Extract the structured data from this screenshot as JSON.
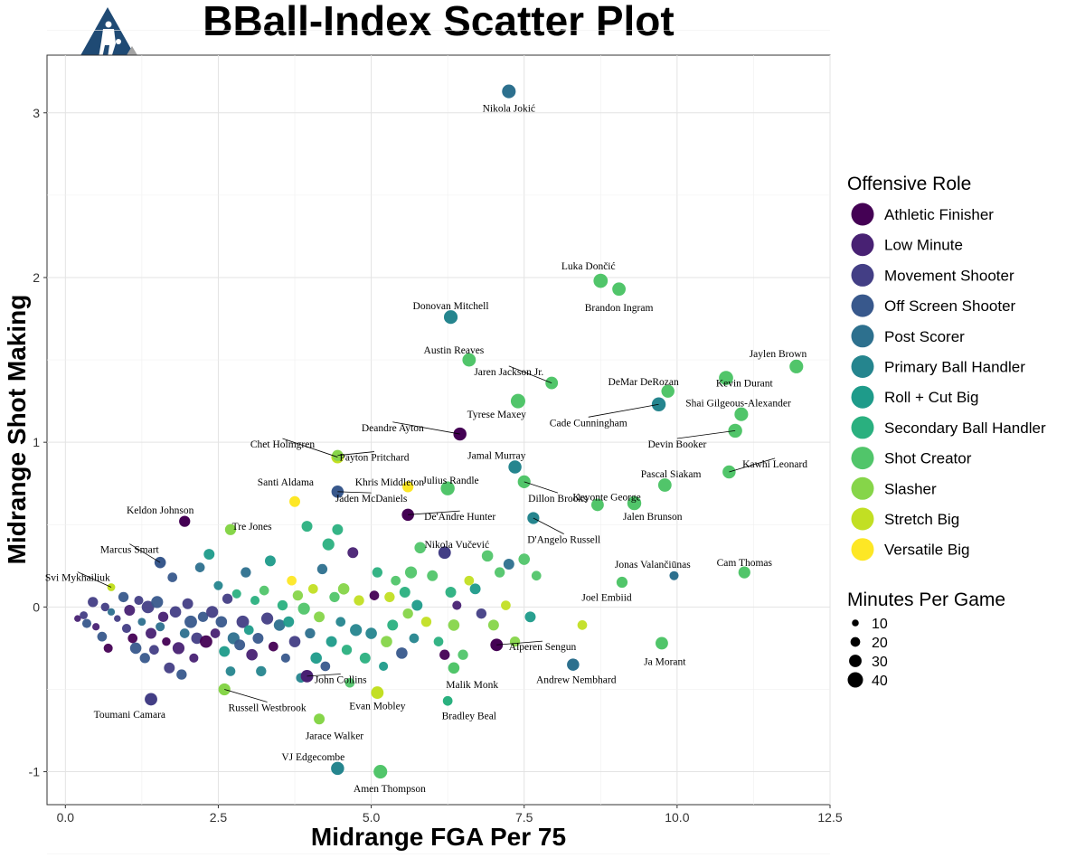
{
  "chart_data": {
    "type": "scatter",
    "title": "BBall-Index Scatter Plot",
    "xlabel": "Midrange FGA Per 75",
    "ylabel": "Midrange Shot Making",
    "xlim": [
      -0.3,
      12.5
    ],
    "ylim": [
      -1.2,
      3.35
    ],
    "x_ticks": [
      "0.0",
      "2.5",
      "5.0",
      "7.5",
      "10.0",
      "12.5"
    ],
    "y_ticks": [
      "-1",
      "0",
      "1",
      "2",
      "3"
    ],
    "grid": true,
    "legend_color_title": "Offensive Role",
    "legend_size_title": "Minutes Per Game",
    "legend_position": "right",
    "roles": [
      {
        "name": "Athletic Finisher",
        "color": "#440154"
      },
      {
        "name": "Low Minute",
        "color": "#482173"
      },
      {
        "name": "Movement Shooter",
        "color": "#433e85"
      },
      {
        "name": "Off Screen Shooter",
        "color": "#38588c"
      },
      {
        "name": "Post Scorer",
        "color": "#2d708e"
      },
      {
        "name": "Primary Ball Handler",
        "color": "#25858e"
      },
      {
        "name": "Roll + Cut Big",
        "color": "#1e9b8a"
      },
      {
        "name": "Secondary Ball Handler",
        "color": "#2ab07f"
      },
      {
        "name": "Shot Creator",
        "color": "#51c56a"
      },
      {
        "name": "Slasher",
        "color": "#86d549"
      },
      {
        "name": "Stretch Big",
        "color": "#c2df23"
      },
      {
        "name": "Versatile Big",
        "color": "#fde725"
      }
    ],
    "size_legend": [
      "10",
      "20",
      "30",
      "40"
    ],
    "labeled_points": [
      {
        "name": "Nikola Jokić",
        "x": 7.25,
        "y": 3.13,
        "mpg": 34,
        "role": 4,
        "lx": 7.25,
        "ly": 3.03
      },
      {
        "name": "Luka Dončić",
        "x": 8.75,
        "y": 1.98,
        "mpg": 36,
        "role": 8,
        "lx": 8.55,
        "ly": 2.07
      },
      {
        "name": "Brandon Ingram",
        "x": 9.05,
        "y": 1.93,
        "mpg": 33,
        "role": 8,
        "lx": 9.05,
        "ly": 1.82
      },
      {
        "name": "Donovan Mitchell",
        "x": 6.3,
        "y": 1.76,
        "mpg": 34,
        "role": 5,
        "lx": 6.3,
        "ly": 1.83
      },
      {
        "name": "Austin Reaves",
        "x": 6.6,
        "y": 1.5,
        "mpg": 33,
        "role": 8,
        "lx": 6.35,
        "ly": 1.56
      },
      {
        "name": "Jaylen Brown",
        "x": 11.95,
        "y": 1.46,
        "mpg": 34,
        "role": 8,
        "lx": 11.65,
        "ly": 1.54
      },
      {
        "name": "Kevin Durant",
        "x": 10.8,
        "y": 1.39,
        "mpg": 36,
        "role": 8,
        "lx": 11.1,
        "ly": 1.36
      },
      {
        "name": "Jaren Jackson Jr.",
        "x": 7.95,
        "y": 1.36,
        "mpg": 30,
        "role": 8,
        "lx": 7.25,
        "ly": 1.43
      },
      {
        "name": "DeMar DeRozan",
        "x": 9.85,
        "y": 1.31,
        "mpg": 32,
        "role": 8,
        "lx": 9.45,
        "ly": 1.37
      },
      {
        "name": "Shai Gilgeous-Alexander",
        "x": 11.05,
        "y": 1.17,
        "mpg": 34,
        "role": 8,
        "lx": 11.0,
        "ly": 1.24
      },
      {
        "name": "Cade Cunningham",
        "x": 9.7,
        "y": 1.23,
        "mpg": 35,
        "role": 5,
        "lx": 8.55,
        "ly": 1.12
      },
      {
        "name": "Tyrese Maxey",
        "x": 7.4,
        "y": 1.25,
        "mpg": 37,
        "role": 8,
        "lx": 7.05,
        "ly": 1.17
      },
      {
        "name": "Devin Booker",
        "x": 10.95,
        "y": 1.07,
        "mpg": 35,
        "role": 8,
        "lx": 10.0,
        "ly": 0.99
      },
      {
        "name": "Deandre Ayton",
        "x": 6.45,
        "y": 1.05,
        "mpg": 32,
        "role": 0,
        "lx": 5.35,
        "ly": 1.09
      },
      {
        "name": "Chet Holmgren",
        "x": 4.45,
        "y": 0.91,
        "mpg": 30,
        "role": 10,
        "lx": 3.55,
        "ly": 0.99
      },
      {
        "name": "Payton Pritchard",
        "x": 4.45,
        "y": 0.92,
        "mpg": 25,
        "role": 9,
        "lx": 5.05,
        "ly": 0.91
      },
      {
        "name": "Kawhi Leonard",
        "x": 10.85,
        "y": 0.82,
        "mpg": 32,
        "role": 8,
        "lx": 11.6,
        "ly": 0.87
      },
      {
        "name": "Jamal Murray",
        "x": 7.35,
        "y": 0.85,
        "mpg": 32,
        "role": 5,
        "lx": 7.05,
        "ly": 0.92
      },
      {
        "name": "Pascal Siakam",
        "x": 9.8,
        "y": 0.74,
        "mpg": 33,
        "role": 8,
        "lx": 9.9,
        "ly": 0.81
      },
      {
        "name": "Santi Aldama",
        "x": 3.75,
        "y": 0.64,
        "mpg": 24,
        "role": 11,
        "lx": 3.6,
        "ly": 0.76
      },
      {
        "name": "Khris Middleton",
        "x": 5.6,
        "y": 0.73,
        "mpg": 25,
        "role": 11,
        "lx": 5.3,
        "ly": 0.76
      },
      {
        "name": "Julius Randle",
        "x": 6.25,
        "y": 0.72,
        "mpg": 35,
        "role": 8,
        "lx": 6.3,
        "ly": 0.77
      },
      {
        "name": "Jaden McDaniels",
        "x": 4.45,
        "y": 0.7,
        "mpg": 29,
        "role": 3,
        "lx": 5.0,
        "ly": 0.66
      },
      {
        "name": "Dillon Brooks",
        "x": 7.5,
        "y": 0.76,
        "mpg": 31,
        "role": 8,
        "lx": 8.05,
        "ly": 0.66
      },
      {
        "name": "Keyonte George",
        "x": 8.7,
        "y": 0.62,
        "mpg": 30,
        "role": 8,
        "lx": 8.85,
        "ly": 0.67
      },
      {
        "name": "Jalen Brunson",
        "x": 9.3,
        "y": 0.63,
        "mpg": 35,
        "role": 8,
        "lx": 9.6,
        "ly": 0.55
      },
      {
        "name": "Keldon Johnson",
        "x": 1.95,
        "y": 0.52,
        "mpg": 25,
        "role": 0,
        "lx": 1.55,
        "ly": 0.59
      },
      {
        "name": "De'Andre Hunter",
        "x": 5.6,
        "y": 0.56,
        "mpg": 29,
        "role": 0,
        "lx": 6.45,
        "ly": 0.55
      },
      {
        "name": "D'Angelo Russell",
        "x": 7.65,
        "y": 0.54,
        "mpg": 28,
        "role": 5,
        "lx": 8.15,
        "ly": 0.41
      },
      {
        "name": "Tre Jones",
        "x": 2.7,
        "y": 0.47,
        "mpg": 25,
        "role": 9,
        "lx": 3.05,
        "ly": 0.49
      },
      {
        "name": "Marcus Smart",
        "x": 1.55,
        "y": 0.27,
        "mpg": 26,
        "role": 3,
        "lx": 1.05,
        "ly": 0.35
      },
      {
        "name": "Nikola Vučević",
        "x": 6.2,
        "y": 0.33,
        "mpg": 30,
        "role": 2,
        "lx": 6.4,
        "ly": 0.38
      },
      {
        "name": "Jonas Valančiūnas",
        "x": 9.95,
        "y": 0.19,
        "mpg": 18,
        "role": 4,
        "lx": 9.6,
        "ly": 0.26
      },
      {
        "name": "Cam Thomas",
        "x": 11.1,
        "y": 0.21,
        "mpg": 28,
        "role": 8,
        "lx": 11.1,
        "ly": 0.27
      },
      {
        "name": "Svi Mykhailiuk",
        "x": 0.75,
        "y": 0.12,
        "mpg": 14,
        "role": 10,
        "lx": 0.2,
        "ly": 0.18
      },
      {
        "name": "Joel Embiid",
        "x": 9.1,
        "y": 0.15,
        "mpg": 25,
        "role": 8,
        "lx": 8.85,
        "ly": 0.06
      },
      {
        "name": "Alperen Sengun",
        "x": 7.05,
        "y": -0.23,
        "mpg": 30,
        "role": 0,
        "lx": 7.8,
        "ly": -0.24
      },
      {
        "name": "Ja Morant",
        "x": 9.75,
        "y": -0.22,
        "mpg": 30,
        "role": 8,
        "lx": 9.8,
        "ly": -0.33
      },
      {
        "name": "Andrew Nembhard",
        "x": 8.3,
        "y": -0.35,
        "mpg": 29,
        "role": 4,
        "lx": 8.35,
        "ly": -0.44
      },
      {
        "name": "John Collins",
        "x": 3.95,
        "y": -0.42,
        "mpg": 30,
        "role": 1,
        "lx": 4.5,
        "ly": -0.44
      },
      {
        "name": "Malik Monk",
        "x": 6.35,
        "y": -0.37,
        "mpg": 26,
        "role": 8,
        "lx": 6.65,
        "ly": -0.47
      },
      {
        "name": "Evan Mobley",
        "x": 5.1,
        "y": -0.52,
        "mpg": 30,
        "role": 10,
        "lx": 5.1,
        "ly": -0.6
      },
      {
        "name": "Russell Westbrook",
        "x": 2.6,
        "y": -0.5,
        "mpg": 28,
        "role": 9,
        "lx": 3.3,
        "ly": -0.61
      },
      {
        "name": "Toumani Camara",
        "x": 1.4,
        "y": -0.56,
        "mpg": 30,
        "role": 2,
        "lx": 1.05,
        "ly": -0.65
      },
      {
        "name": "Bradley Beal",
        "x": 6.25,
        "y": -0.57,
        "mpg": 20,
        "role": 7,
        "lx": 6.6,
        "ly": -0.66
      },
      {
        "name": "Jarace Walker",
        "x": 4.15,
        "y": -0.68,
        "mpg": 24,
        "role": 9,
        "lx": 4.4,
        "ly": -0.78
      },
      {
        "name": "VJ Edgecombe",
        "x": 4.45,
        "y": -0.98,
        "mpg": 32,
        "role": 5,
        "lx": 4.05,
        "ly": -0.91
      },
      {
        "name": "Amen Thompson",
        "x": 5.15,
        "y": -1.0,
        "mpg": 34,
        "role": 8,
        "lx": 5.3,
        "ly": -1.1
      }
    ],
    "other_points": [
      [
        0.2,
        -0.07,
        10,
        1
      ],
      [
        0.3,
        -0.05,
        14,
        2
      ],
      [
        0.35,
        -0.1,
        18,
        3
      ],
      [
        0.45,
        0.03,
        22,
        2
      ],
      [
        0.5,
        -0.12,
        12,
        1
      ],
      [
        0.6,
        -0.18,
        20,
        3
      ],
      [
        0.65,
        0.0,
        16,
        2
      ],
      [
        0.7,
        -0.25,
        18,
        0
      ],
      [
        0.75,
        -0.03,
        12,
        4
      ],
      [
        0.85,
        -0.07,
        10,
        2
      ],
      [
        0.95,
        0.06,
        22,
        3
      ],
      [
        1.0,
        -0.13,
        18,
        2
      ],
      [
        1.05,
        -0.02,
        24,
        1
      ],
      [
        1.1,
        -0.19,
        20,
        0
      ],
      [
        1.15,
        -0.25,
        26,
        3
      ],
      [
        1.2,
        0.04,
        18,
        2
      ],
      [
        1.25,
        -0.09,
        14,
        4
      ],
      [
        1.3,
        -0.31,
        22,
        3
      ],
      [
        1.35,
        0.0,
        30,
        2
      ],
      [
        1.4,
        -0.16,
        24,
        1
      ],
      [
        1.45,
        -0.26,
        20,
        2
      ],
      [
        1.5,
        0.03,
        28,
        3
      ],
      [
        1.55,
        -0.12,
        18,
        4
      ],
      [
        1.6,
        -0.06,
        22,
        1
      ],
      [
        1.65,
        -0.21,
        16,
        0
      ],
      [
        1.7,
        -0.37,
        24,
        2
      ],
      [
        1.75,
        0.18,
        20,
        3
      ],
      [
        1.8,
        -0.03,
        26,
        2
      ],
      [
        1.85,
        -0.25,
        28,
        1
      ],
      [
        1.9,
        -0.41,
        22,
        3
      ],
      [
        1.95,
        -0.16,
        20,
        4
      ],
      [
        2.0,
        0.02,
        24,
        2
      ],
      [
        2.05,
        -0.09,
        30,
        3
      ],
      [
        2.1,
        -0.31,
        18,
        1
      ],
      [
        2.15,
        -0.19,
        26,
        2
      ],
      [
        2.2,
        0.24,
        20,
        4
      ],
      [
        2.25,
        -0.06,
        22,
        3
      ],
      [
        2.3,
        -0.21,
        30,
        0
      ],
      [
        2.35,
        0.32,
        24,
        6
      ],
      [
        2.4,
        -0.03,
        28,
        2
      ],
      [
        2.45,
        -0.16,
        20,
        1
      ],
      [
        2.5,
        0.13,
        18,
        5
      ],
      [
        2.55,
        -0.09,
        26,
        3
      ],
      [
        2.6,
        -0.27,
        24,
        6
      ],
      [
        2.65,
        0.05,
        22,
        2
      ],
      [
        2.7,
        -0.39,
        20,
        5
      ],
      [
        2.75,
        -0.19,
        28,
        4
      ],
      [
        2.8,
        0.08,
        18,
        7
      ],
      [
        2.85,
        -0.23,
        24,
        3
      ],
      [
        2.9,
        -0.09,
        30,
        2
      ],
      [
        2.95,
        0.21,
        22,
        4
      ],
      [
        3.0,
        -0.14,
        20,
        6
      ],
      [
        3.05,
        -0.29,
        26,
        1
      ],
      [
        3.1,
        0.04,
        18,
        7
      ],
      [
        3.15,
        -0.19,
        24,
        3
      ],
      [
        3.2,
        -0.39,
        22,
        5
      ],
      [
        3.25,
        0.1,
        20,
        8
      ],
      [
        3.3,
        -0.07,
        28,
        2
      ],
      [
        3.35,
        0.28,
        24,
        6
      ],
      [
        3.4,
        -0.24,
        20,
        0
      ],
      [
        3.5,
        -0.11,
        26,
        4
      ],
      [
        3.55,
        0.01,
        22,
        7
      ],
      [
        3.6,
        -0.31,
        18,
        3
      ],
      [
        3.65,
        -0.09,
        24,
        6
      ],
      [
        3.7,
        0.16,
        20,
        11
      ],
      [
        3.75,
        -0.21,
        26,
        2
      ],
      [
        3.8,
        0.07,
        22,
        9
      ],
      [
        3.85,
        -0.43,
        20,
        5
      ],
      [
        3.9,
        -0.01,
        28,
        8
      ],
      [
        3.95,
        0.49,
        24,
        7
      ],
      [
        4.0,
        -0.16,
        22,
        4
      ],
      [
        4.05,
        0.11,
        20,
        10
      ],
      [
        4.1,
        -0.31,
        26,
        6
      ],
      [
        4.15,
        -0.06,
        24,
        9
      ],
      [
        4.2,
        0.23,
        22,
        4
      ],
      [
        4.25,
        -0.36,
        20,
        3
      ],
      [
        4.3,
        0.38,
        28,
        7
      ],
      [
        4.35,
        -0.21,
        24,
        6
      ],
      [
        4.4,
        0.06,
        22,
        8
      ],
      [
        4.45,
        0.47,
        24,
        7
      ],
      [
        4.5,
        -0.09,
        20,
        5
      ],
      [
        4.55,
        0.11,
        26,
        9
      ],
      [
        4.6,
        -0.26,
        22,
        7
      ],
      [
        4.65,
        -0.46,
        20,
        8
      ],
      [
        4.7,
        0.33,
        24,
        1
      ],
      [
        4.75,
        -0.14,
        28,
        5
      ],
      [
        4.8,
        0.04,
        22,
        10
      ],
      [
        4.9,
        -0.31,
        24,
        7
      ],
      [
        5.0,
        -0.16,
        26,
        5
      ],
      [
        5.05,
        0.07,
        20,
        0
      ],
      [
        5.1,
        0.21,
        22,
        7
      ],
      [
        5.2,
        -0.36,
        18,
        6
      ],
      [
        5.25,
        -0.21,
        26,
        9
      ],
      [
        5.3,
        0.06,
        22,
        10
      ],
      [
        5.35,
        -0.11,
        24,
        7
      ],
      [
        5.4,
        0.16,
        20,
        8
      ],
      [
        5.5,
        -0.28,
        26,
        3
      ],
      [
        5.55,
        0.09,
        24,
        7
      ],
      [
        5.6,
        -0.04,
        22,
        9
      ],
      [
        5.65,
        0.21,
        28,
        8
      ],
      [
        5.7,
        -0.19,
        20,
        5
      ],
      [
        5.75,
        0.01,
        24,
        6
      ],
      [
        5.8,
        0.36,
        26,
        8
      ],
      [
        5.9,
        -0.09,
        22,
        10
      ],
      [
        6.0,
        0.19,
        24,
        8
      ],
      [
        6.1,
        -0.21,
        20,
        7
      ],
      [
        6.2,
        -0.29,
        22,
        0
      ],
      [
        6.3,
        0.09,
        24,
        7
      ],
      [
        6.35,
        -0.11,
        26,
        9
      ],
      [
        6.4,
        0.01,
        18,
        1
      ],
      [
        6.5,
        -0.29,
        22,
        8
      ],
      [
        6.6,
        0.16,
        20,
        10
      ],
      [
        6.7,
        0.11,
        24,
        6
      ],
      [
        6.8,
        -0.04,
        22,
        2
      ],
      [
        6.9,
        0.31,
        26,
        8
      ],
      [
        7.0,
        -0.11,
        24,
        9
      ],
      [
        7.1,
        0.21,
        22,
        8
      ],
      [
        7.2,
        0.01,
        20,
        10
      ],
      [
        7.25,
        0.26,
        24,
        4
      ],
      [
        7.35,
        -0.21,
        22,
        9
      ],
      [
        7.5,
        0.29,
        26,
        8
      ],
      [
        7.6,
        -0.06,
        24,
        6
      ],
      [
        7.7,
        0.19,
        20,
        8
      ],
      [
        8.45,
        -0.11,
        20,
        10
      ]
    ]
  }
}
